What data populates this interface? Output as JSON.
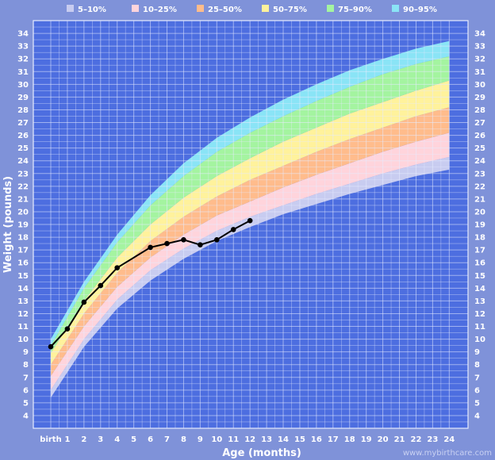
{
  "chart_data": {
    "type": "area",
    "xlabel": "Age (months)",
    "ylabel": "Weight (pounds)",
    "x_tick_labels": [
      "birth",
      "1",
      "2",
      "3",
      "4",
      "5",
      "6",
      "7",
      "8",
      "9",
      "10",
      "11",
      "12",
      "13",
      "14",
      "15",
      "16",
      "17",
      "18",
      "19",
      "20",
      "21",
      "22",
      "23",
      "24"
    ],
    "xlim": [
      0,
      24
    ],
    "ylim": [
      3,
      35
    ],
    "y_ticks": [
      4,
      5,
      6,
      7,
      8,
      9,
      10,
      11,
      12,
      13,
      14,
      15,
      16,
      17,
      18,
      19,
      20,
      21,
      22,
      23,
      24,
      25,
      26,
      27,
      28,
      29,
      30,
      31,
      32,
      33,
      34
    ],
    "grid": true,
    "legend_position": "top",
    "months": [
      0,
      2,
      4,
      6,
      8,
      10,
      12,
      14,
      16,
      18,
      20,
      22,
      24
    ],
    "percentile_curves": [
      {
        "p": 5,
        "values": [
          5.4,
          9.4,
          12.4,
          14.6,
          16.3,
          17.7,
          18.8,
          19.8,
          20.6,
          21.4,
          22.1,
          22.8,
          23.3
        ]
      },
      {
        "p": 10,
        "values": [
          6.0,
          10.0,
          13.1,
          15.4,
          17.1,
          18.5,
          19.6,
          20.5,
          21.4,
          22.2,
          23.0,
          23.7,
          24.3
        ]
      },
      {
        "p": 25,
        "values": [
          7.1,
          11.0,
          14.1,
          16.4,
          18.2,
          19.7,
          20.8,
          21.9,
          22.9,
          23.8,
          24.7,
          25.5,
          26.2
        ]
      },
      {
        "p": 50,
        "values": [
          8.0,
          12.0,
          15.2,
          17.7,
          19.6,
          21.2,
          22.5,
          23.6,
          24.7,
          25.7,
          26.6,
          27.5,
          28.2
        ]
      },
      {
        "p": 75,
        "values": [
          8.9,
          13.0,
          16.4,
          19.0,
          21.1,
          22.8,
          24.2,
          25.5,
          26.6,
          27.7,
          28.6,
          29.5,
          30.3
        ]
      },
      {
        "p": 90,
        "values": [
          9.5,
          14.0,
          17.6,
          20.5,
          22.8,
          24.7,
          26.2,
          27.5,
          28.7,
          29.8,
          30.8,
          31.6,
          32.2
        ]
      },
      {
        "p": 95,
        "values": [
          10.0,
          14.5,
          18.2,
          21.3,
          23.8,
          25.8,
          27.4,
          28.8,
          30.0,
          31.1,
          32.0,
          32.8,
          33.4
        ]
      }
    ],
    "bands": [
      {
        "name": "5–10%",
        "lower": 5,
        "upper": 10,
        "color": "#c8ccf0"
      },
      {
        "name": "10–25%",
        "lower": 10,
        "upper": 25,
        "color": "#ffd4dc"
      },
      {
        "name": "25–50%",
        "lower": 25,
        "upper": 50,
        "color": "#ffbc8c"
      },
      {
        "name": "50–75%",
        "lower": 50,
        "upper": 75,
        "color": "#fff29c"
      },
      {
        "name": "75–90%",
        "lower": 75,
        "upper": 90,
        "color": "#a4f4a0"
      },
      {
        "name": "90–95%",
        "lower": 90,
        "upper": 95,
        "color": "#8ae4f6"
      }
    ],
    "series": [
      {
        "x": [
          0,
          1,
          2,
          3,
          4,
          6,
          7,
          8,
          9,
          10,
          11,
          12
        ],
        "y": [
          9.4,
          10.8,
          12.9,
          14.2,
          15.6,
          17.2,
          17.5,
          17.8,
          17.4,
          17.8,
          18.6,
          19.3
        ],
        "color": "#000000"
      }
    ]
  },
  "watermark": "www.mybirthcare.com"
}
